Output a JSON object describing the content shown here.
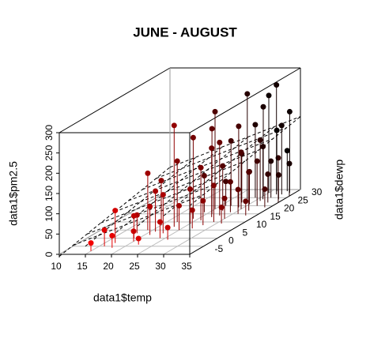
{
  "chart_data": {
    "type": "scatter3d",
    "title": "JUNE - AUGUST",
    "x_label": "data1$temp",
    "y_label": "data1$dewp",
    "z_label": "data1$pm2.5",
    "xlim": [
      10,
      35
    ],
    "xticks": [
      10,
      15,
      20,
      25,
      30,
      35
    ],
    "ylim": [
      -10,
      30
    ],
    "yticks": [
      -5,
      0,
      5,
      10,
      15,
      20,
      25,
      30
    ],
    "zlim": [
      0,
      300
    ],
    "zticks": [
      0,
      50,
      100,
      150,
      200,
      250,
      300
    ],
    "color_low": "#ff0000",
    "color_high": "#000000",
    "plane": {
      "intercept": -40,
      "x_coef": 5,
      "y_coef": 1.5
    },
    "x": [
      16,
      17,
      18,
      19,
      20,
      21,
      22,
      23,
      24,
      25,
      26,
      27,
      20,
      22,
      23,
      24,
      25,
      26,
      27,
      28,
      29,
      30,
      31,
      26,
      27,
      28,
      29,
      30,
      31,
      32,
      33,
      25,
      27,
      28,
      29,
      30,
      31,
      32,
      33,
      34,
      28,
      29,
      30,
      31,
      32,
      33,
      34,
      30,
      31,
      32,
      33,
      34,
      35,
      19,
      21,
      15,
      18,
      24,
      26,
      35
    ],
    "y": [
      -5,
      -3,
      -6,
      0,
      -2,
      2,
      -4,
      3,
      0,
      5,
      -1,
      6,
      8,
      10,
      7,
      12,
      9,
      11,
      13,
      8,
      10,
      12,
      9,
      15,
      17,
      14,
      16,
      18,
      15,
      17,
      14,
      18,
      20,
      22,
      19,
      21,
      23,
      20,
      22,
      19,
      24,
      25,
      26,
      24,
      25,
      27,
      24,
      28,
      29,
      27,
      29,
      28,
      26,
      5,
      4,
      -8,
      3,
      16,
      20,
      22
    ],
    "z": [
      40,
      80,
      30,
      55,
      25,
      70,
      15,
      95,
      40,
      60,
      30,
      45,
      110,
      150,
      250,
      200,
      85,
      130,
      170,
      60,
      90,
      50,
      40,
      210,
      110,
      180,
      75,
      140,
      60,
      95,
      35,
      240,
      160,
      120,
      200,
      80,
      150,
      110,
      70,
      45,
      260,
      180,
      220,
      130,
      90,
      170,
      60,
      240,
      150,
      270,
      100,
      200,
      80,
      140,
      100,
      20,
      45,
      90,
      60,
      110
    ]
  }
}
